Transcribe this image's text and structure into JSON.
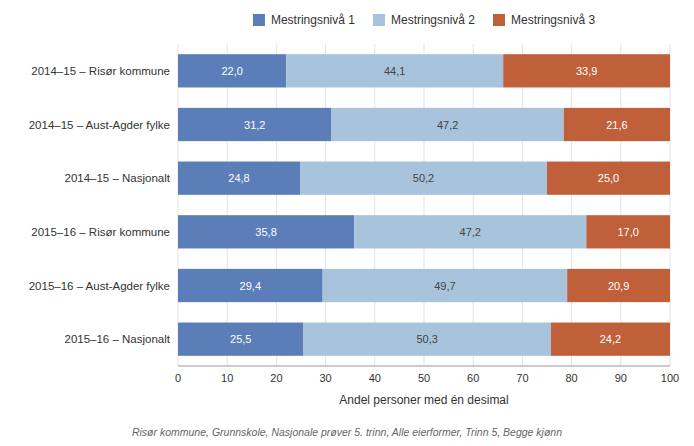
{
  "chart_data": {
    "type": "bar",
    "orientation": "horizontal",
    "stacked": true,
    "categories": [
      "2014–15 – Risør kommune",
      "2014–15 – Aust-Agder fylke",
      "2014–15 – Nasjonalt",
      "2015–16 – Risør kommune",
      "2015–16 – Aust-Agder fylke",
      "2015–16 – Nasjonalt"
    ],
    "series": [
      {
        "name": "Mestringsnivå 1",
        "color": "#5B7DB8",
        "values": [
          22.0,
          31.2,
          24.8,
          35.8,
          29.4,
          25.5
        ],
        "value_labels": [
          "22,0",
          "31,2",
          "24,8",
          "35,8",
          "29,4",
          "25,5"
        ]
      },
      {
        "name": "Mestringsnivå 2",
        "color": "#A8C4DC",
        "values": [
          44.1,
          47.2,
          50.2,
          47.2,
          49.7,
          50.3
        ],
        "value_labels": [
          "44,1",
          "47,2",
          "50,2",
          "47,2",
          "49,7",
          "50,3"
        ]
      },
      {
        "name": "Mestringsnivå 3",
        "color": "#C0603A",
        "values": [
          33.9,
          21.6,
          25.0,
          17.0,
          20.9,
          24.2
        ],
        "value_labels": [
          "33,9",
          "21,6",
          "25,0",
          "17,0",
          "20,9",
          "24,2"
        ]
      }
    ],
    "xlabel": "Andel personer med én desimal",
    "xlim": [
      0,
      100
    ],
    "xticks": [
      0,
      10,
      20,
      30,
      40,
      50,
      60,
      70,
      80,
      90,
      100
    ],
    "grid": true,
    "legend": "top",
    "data_labels": true,
    "annotations": [
      "Risør kommune, Grunnskole, Nasjonale prøver 5. trinn, Alle eierformer, Trinn 5, Begge kjønn"
    ]
  }
}
